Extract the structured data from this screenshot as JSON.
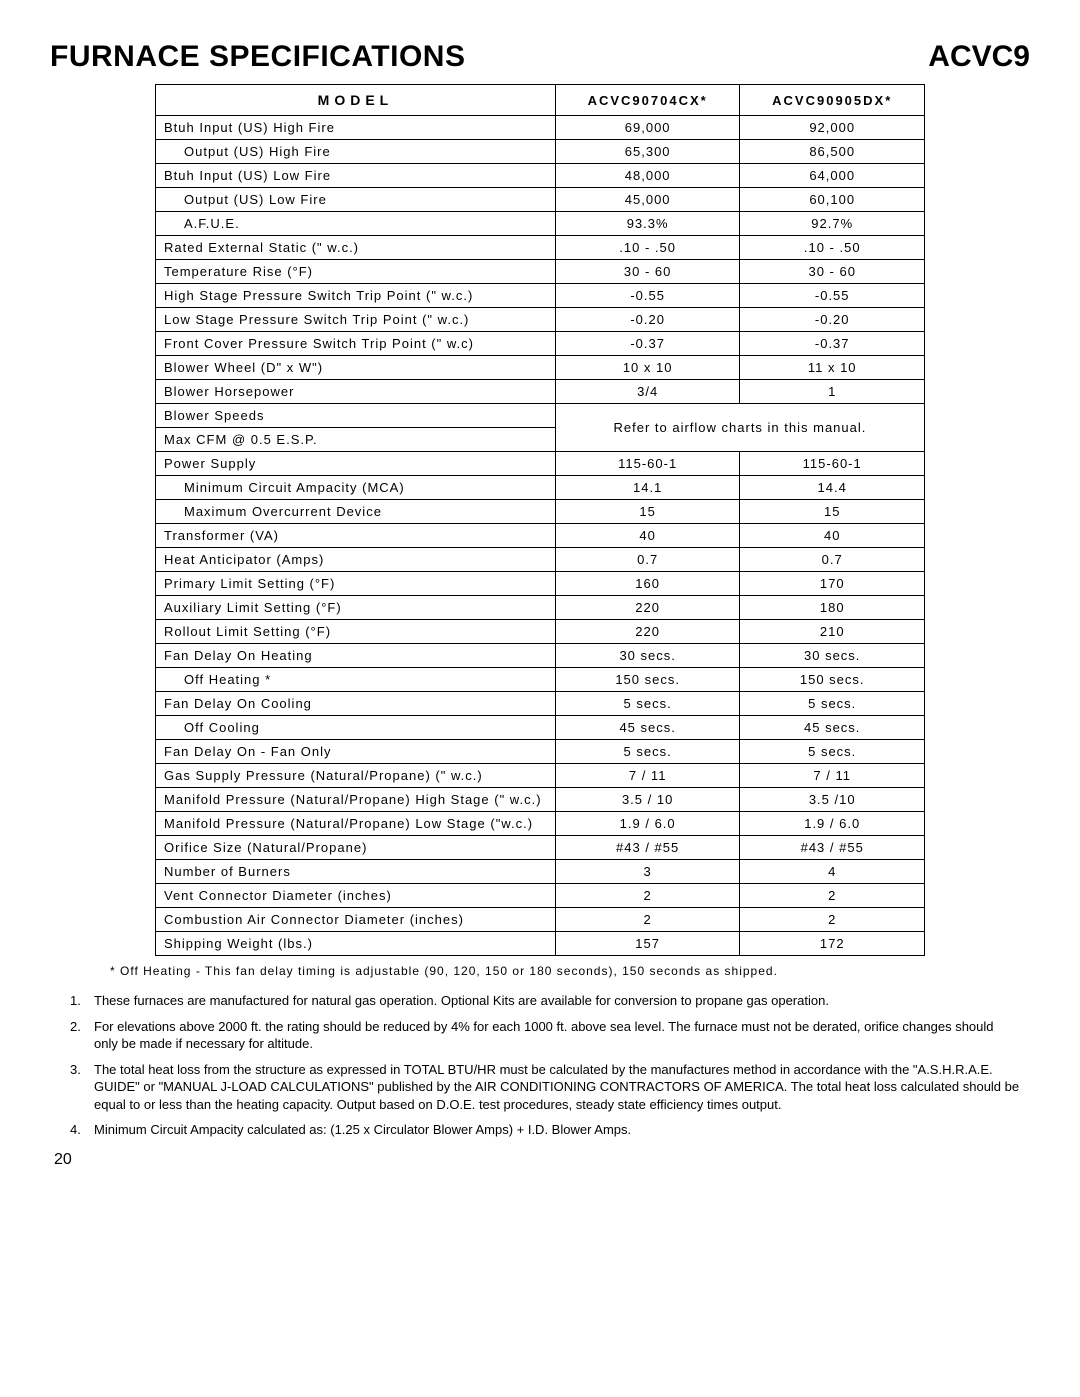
{
  "header": {
    "title": "FURNACE SPECIFICATIONS",
    "series": "ACVC9"
  },
  "table": {
    "model_label": "MODEL",
    "models": [
      "ACVC90704CX*",
      "ACVC90905DX*"
    ],
    "rows": [
      {
        "label": "Btuh Input (US) High Fire",
        "v": [
          "69,000",
          "92,000"
        ]
      },
      {
        "label": "Output (US) High Fire",
        "indent": 1,
        "v": [
          "65,300",
          "86,500"
        ]
      },
      {
        "label": "Btuh Input (US) Low Fire",
        "v": [
          "48,000",
          "64,000"
        ]
      },
      {
        "label": "Output (US) Low Fire",
        "indent": 1,
        "v": [
          "45,000",
          "60,100"
        ]
      },
      {
        "label": "A.F.U.E.",
        "indent": 1,
        "v": [
          "93.3%",
          "92.7%"
        ]
      },
      {
        "label": "Rated External Static (\" w.c.)",
        "v": [
          ".10 - .50",
          ".10 - .50"
        ]
      },
      {
        "label": "Temperature Rise (°F)",
        "v": [
          "30 - 60",
          "30 - 60"
        ]
      },
      {
        "label": "High Stage Pressure Switch Trip Point (\" w.c.)",
        "v": [
          "-0.55",
          "-0.55"
        ]
      },
      {
        "label": "Low Stage Pressure Switch Trip Point (\" w.c.)",
        "v": [
          "-0.20",
          "-0.20"
        ]
      },
      {
        "label": "Front Cover Pressure Switch Trip Point (\" w.c)",
        "v": [
          "-0.37",
          "-0.37"
        ]
      },
      {
        "label": "Blower Wheel (D\" x W\")",
        "v": [
          "10 x 10",
          "11 x 10"
        ]
      },
      {
        "label": "Blower Horsepower",
        "v": [
          "3/4",
          "1"
        ]
      },
      {
        "label": "Blower Speeds",
        "merged_with_next": true
      },
      {
        "label": "Max CFM @ 0.5 E.S.P.",
        "merged_value": "Refer to airflow charts in this manual."
      },
      {
        "label": "Power Supply",
        "v": [
          "115-60-1",
          "115-60-1"
        ]
      },
      {
        "label": "Minimum Circuit Ampacity (MCA)",
        "indent": 1,
        "v": [
          "14.1",
          "14.4"
        ]
      },
      {
        "label": "Maximum Overcurrent Device",
        "indent": 1,
        "v": [
          "15",
          "15"
        ]
      },
      {
        "label": "Transformer (VA)",
        "v": [
          "40",
          "40"
        ]
      },
      {
        "label": "Heat Anticipator (Amps)",
        "v": [
          "0.7",
          "0.7"
        ]
      },
      {
        "label": "Primary Limit Setting (°F)",
        "v": [
          "160",
          "170"
        ]
      },
      {
        "label": "Auxiliary Limit Setting (°F)",
        "v": [
          "220",
          "180"
        ]
      },
      {
        "label": "Rollout Limit Setting (°F)",
        "v": [
          "220",
          "210"
        ]
      },
      {
        "label": "Fan Delay On Heating",
        "v": [
          "30 secs.",
          "30 secs."
        ]
      },
      {
        "label": "Off Heating *",
        "indent": 2,
        "v": [
          "150 secs.",
          "150 secs."
        ]
      },
      {
        "label": "Fan Delay On Cooling",
        "v": [
          "5 secs.",
          "5 secs."
        ]
      },
      {
        "label": "Off Cooling",
        "indent": 2,
        "v": [
          "45 secs.",
          "45 secs."
        ]
      },
      {
        "label": "Fan Delay On - Fan Only",
        "v": [
          "5 secs.",
          "5 secs."
        ]
      },
      {
        "label": "Gas Supply Pressure (Natural/Propane) (\" w.c.)",
        "v": [
          "7 / 11",
          "7 / 11"
        ]
      },
      {
        "label": "Manifold Pressure (Natural/Propane) High Stage (\" w.c.)",
        "v": [
          "3.5 / 10",
          "3.5 /10"
        ]
      },
      {
        "label": "Manifold Pressure (Natural/Propane) Low Stage (\"w.c.)",
        "v": [
          "1.9 / 6.0",
          "1.9 / 6.0"
        ]
      },
      {
        "label": "Orifice Size (Natural/Propane)",
        "v": [
          "#43 / #55",
          "#43 / #55"
        ]
      },
      {
        "label": "Number of Burners",
        "v": [
          "3",
          "4"
        ]
      },
      {
        "label": "Vent  Connector Diameter (inches)",
        "v": [
          "2",
          "2"
        ]
      },
      {
        "label": "Combustion Air Connector Diameter (inches)",
        "v": [
          "2",
          "2"
        ]
      },
      {
        "label": "Shipping Weight (lbs.)",
        "v": [
          "157",
          "172"
        ]
      }
    ]
  },
  "footnote": "* Off Heating - This fan delay timing is adjustable (90, 120, 150 or 180 seconds), 150 seconds as shipped.",
  "notes": [
    "These furnaces are manufactured for natural gas operation. Optional Kits are available for conversion to propane gas operation.",
    "For elevations above 2000 ft. the rating should be reduced by 4% for each 1000 ft. above sea level. The furnace must not be derated, orifice changes should only be made if necessary for altitude.",
    "The total heat loss from the structure as expressed in TOTAL BTU/HR must be calculated by the manufactures method in accordance with the \"A.S.H.R.A.E. GUIDE\" or \"MANUAL J-LOAD CALCULATIONS\" published by the AIR CONDITIONING CONTRACTORS OF AMERICA. The total heat loss calculated should be equal to or less than the heating capacity. Output based on D.O.E. test procedures, steady state efficiency times output.",
    "Minimum Circuit Ampacity calculated as: (1.25 x Circulator Blower Amps) + I.D. Blower Amps."
  ],
  "page_number": "20"
}
